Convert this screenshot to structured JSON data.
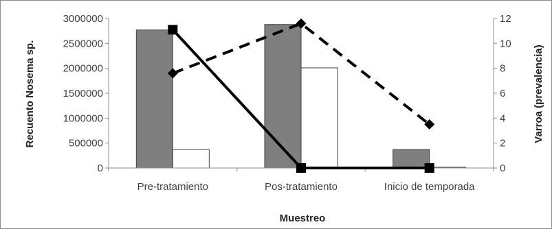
{
  "chart_data": {
    "type": "bar",
    "title": "",
    "xlabel": "Muestreo",
    "ylabel": "Recuento Nosema sp.",
    "y2label": "Varroa (prevalencia)",
    "categories": [
      "Pre-tratamiento",
      "Pos-tratamiento",
      "Inicio de temporada"
    ],
    "ylim": [
      0,
      3000000
    ],
    "yticks": [
      "0",
      "500000",
      "1000000",
      "1500000",
      "2000000",
      "2500000",
      "3000000"
    ],
    "y2lim": [
      0,
      12
    ],
    "y2ticks": [
      "0",
      "2",
      "4",
      "6",
      "8",
      "10",
      "12"
    ],
    "grid": false,
    "legend": "none",
    "series": [
      {
        "kind": "bar",
        "axis": "left",
        "color": "#7f7f7f",
        "values": [
          2770000,
          2880000,
          370000
        ]
      },
      {
        "kind": "bar",
        "axis": "left",
        "color": "#ffffff",
        "values": [
          370000,
          2010000,
          15000
        ]
      },
      {
        "kind": "line",
        "axis": "right",
        "style": "solid",
        "marker": "square",
        "color": "#000000",
        "values": [
          11.1,
          0,
          0
        ]
      },
      {
        "kind": "line",
        "axis": "right",
        "style": "dashed",
        "marker": "diamond",
        "color": "#000000",
        "values": [
          7.6,
          11.6,
          3.5
        ]
      }
    ]
  }
}
